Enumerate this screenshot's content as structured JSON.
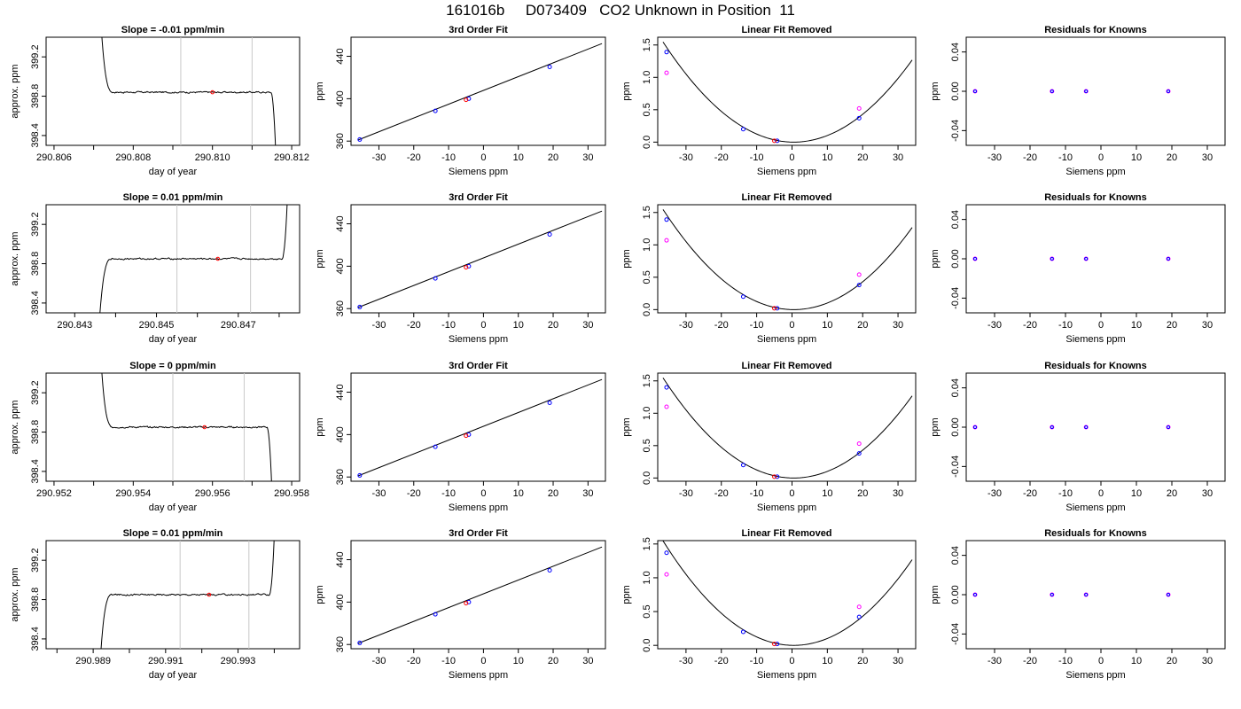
{
  "page_title": "161016b     D073409   CO2 Unknown in Position  11",
  "colors": {
    "axis": "#000000",
    "curve": "#000000",
    "vline": "#c8c8c8",
    "known_point": "#0000ff",
    "raw_point": "#ff00ff",
    "unknown_point": "#ff0000"
  },
  "chart_data": [
    {
      "type": "line",
      "panel": "trace",
      "row": 1,
      "title": "Slope =  -0.01  ppm/min",
      "xlabel": "day of year",
      "ylabel": "approx. ppm",
      "xlim": [
        290.8058,
        290.8122
      ],
      "ylim": [
        398.3,
        399.4
      ],
      "x_ticks": [
        290.806,
        290.807,
        290.808,
        290.809,
        290.81,
        290.811,
        290.812
      ],
      "x_tick_labels": [
        "290.806",
        "",
        "290.808",
        "",
        "290.810",
        "",
        "290.812"
      ],
      "y_ticks": [
        398.4,
        398.8,
        399.2
      ],
      "y_tick_labels": [
        "398.4",
        "398.8",
        "399.2"
      ],
      "vlines": [
        290.8092,
        290.811
      ],
      "trace": {
        "x_start": 290.8072,
        "x_end": 290.8116,
        "level": 398.84,
        "start_value": 399.45,
        "end_value": 398.2,
        "rise": false
      },
      "point": {
        "x": 290.81,
        "y": 398.84
      }
    },
    {
      "type": "scatter",
      "panel": "fit",
      "row": 1,
      "title": "3rd Order Fit",
      "xlabel": "Siemens ppm",
      "ylabel": "ppm",
      "xlim": [
        -38,
        35
      ],
      "ylim": [
        356,
        458
      ],
      "x_ticks": [
        -30,
        -20,
        -10,
        0,
        10,
        20,
        30
      ],
      "y_ticks": [
        360,
        400,
        440
      ],
      "x_tick_labels": [
        "-30",
        "-20",
        "-10",
        "0",
        "10",
        "20",
        "30"
      ],
      "y_tick_labels": [
        "360",
        "400",
        "440"
      ],
      "line": {
        "x": [
          -36,
          34
        ],
        "y": [
          361,
          452
        ]
      },
      "knowns": [
        [
          -35.5,
          361.5
        ],
        [
          -13.8,
          388.5
        ],
        [
          -4.2,
          400
        ],
        [
          19,
          430
        ]
      ],
      "unknown": [
        -5,
        399
      ]
    },
    {
      "type": "scatter",
      "panel": "linear",
      "row": 1,
      "title": "Linear Fit Removed",
      "xlabel": "Siemens ppm",
      "ylabel": "ppm",
      "xlim": [
        -38,
        35
      ],
      "ylim": [
        -0.05,
        1.62
      ],
      "x_ticks": [
        -30,
        -20,
        -10,
        0,
        10,
        20,
        30
      ],
      "y_ticks": [
        0,
        0.5,
        1,
        1.5
      ],
      "x_tick_labels": [
        "-30",
        "-20",
        "-10",
        "0",
        "10",
        "20",
        "30"
      ],
      "y_tick_labels": [
        "0.0",
        "0.5",
        "1.0",
        "1.5"
      ],
      "curve": {
        "vertex_x": 0.5,
        "coef": 0.00113,
        "x_range": [
          -36.5,
          34
        ]
      },
      "knowns": [
        [
          -35.5,
          1.39
        ],
        [
          -13.8,
          0.2
        ],
        [
          -4.2,
          0.02
        ],
        [
          19,
          0.37
        ]
      ],
      "raw": [
        [
          -35.5,
          1.07
        ],
        [
          19,
          0.52
        ]
      ],
      "unknown": [
        -5,
        0.02
      ]
    },
    {
      "type": "scatter",
      "panel": "resid",
      "row": 1,
      "title": "Residuals for Knowns",
      "xlabel": "Siemens ppm",
      "ylabel": "ppm",
      "xlim": [
        -38,
        35
      ],
      "ylim": [
        -0.055,
        0.055
      ],
      "x_ticks": [
        -30,
        -20,
        -10,
        0,
        10,
        20,
        30
      ],
      "y_ticks": [
        -0.04,
        0,
        0.04
      ],
      "x_tick_labels": [
        "-30",
        "-20",
        "-10",
        "0",
        "10",
        "20",
        "30"
      ],
      "y_tick_labels": [
        "-0.04",
        "0.00",
        "0.04"
      ],
      "knowns": [
        [
          -35.5,
          0
        ],
        [
          -13.8,
          0
        ],
        [
          -4.2,
          0
        ],
        [
          19,
          0
        ]
      ]
    },
    {
      "type": "line",
      "panel": "trace",
      "row": 2,
      "title": "Slope =  0.01  ppm/min",
      "xlabel": "day of year",
      "ylabel": "approx. ppm",
      "xlim": [
        290.8423,
        290.8485
      ],
      "ylim": [
        398.3,
        399.4
      ],
      "x_ticks": [
        290.843,
        290.844,
        290.845,
        290.846,
        290.847,
        290.848
      ],
      "x_tick_labels": [
        "290.843",
        "",
        "290.845",
        "",
        "290.847",
        ""
      ],
      "y_ticks": [
        398.4,
        398.8,
        399.2
      ],
      "y_tick_labels": [
        "398.4",
        "398.8",
        "399.2"
      ],
      "vlines": [
        290.8455,
        290.8473
      ],
      "trace": {
        "x_start": 290.8436,
        "x_end": 290.8482,
        "level": 398.85,
        "start_value": 398.2,
        "end_value": 399.45,
        "rise": true
      },
      "point": {
        "x": 290.8465,
        "y": 398.85
      }
    },
    {
      "type": "scatter",
      "panel": "fit",
      "row": 2,
      "title": "3rd Order Fit",
      "xlabel": "Siemens ppm",
      "ylabel": "ppm",
      "xlim": [
        -38,
        35
      ],
      "ylim": [
        356,
        458
      ],
      "x_ticks": [
        -30,
        -20,
        -10,
        0,
        10,
        20,
        30
      ],
      "y_ticks": [
        360,
        400,
        440
      ],
      "x_tick_labels": [
        "-30",
        "-20",
        "-10",
        "0",
        "10",
        "20",
        "30"
      ],
      "y_tick_labels": [
        "360",
        "400",
        "440"
      ],
      "line": {
        "x": [
          -36,
          34
        ],
        "y": [
          361,
          452
        ]
      },
      "knowns": [
        [
          -35.5,
          361.5
        ],
        [
          -13.8,
          388.5
        ],
        [
          -4.2,
          400
        ],
        [
          19,
          430
        ]
      ],
      "unknown": [
        -5,
        399
      ]
    },
    {
      "type": "scatter",
      "panel": "linear",
      "row": 2,
      "title": "Linear Fit Removed",
      "xlabel": "Siemens ppm",
      "ylabel": "ppm",
      "xlim": [
        -38,
        35
      ],
      "ylim": [
        -0.05,
        1.62
      ],
      "x_ticks": [
        -30,
        -20,
        -10,
        0,
        10,
        20,
        30
      ],
      "y_ticks": [
        0,
        0.5,
        1,
        1.5
      ],
      "x_tick_labels": [
        "-30",
        "-20",
        "-10",
        "0",
        "10",
        "20",
        "30"
      ],
      "y_tick_labels": [
        "0.0",
        "0.5",
        "1.0",
        "1.5"
      ],
      "curve": {
        "vertex_x": 0.5,
        "coef": 0.00113,
        "x_range": [
          -36.5,
          34
        ]
      },
      "knowns": [
        [
          -35.5,
          1.39
        ],
        [
          -13.8,
          0.2
        ],
        [
          -4.2,
          0.02
        ],
        [
          19,
          0.38
        ]
      ],
      "raw": [
        [
          -35.5,
          1.07
        ],
        [
          19,
          0.54
        ]
      ],
      "unknown": [
        -5,
        0.02
      ]
    },
    {
      "type": "scatter",
      "panel": "resid",
      "row": 2,
      "title": "Residuals for Knowns",
      "xlabel": "Siemens ppm",
      "ylabel": "ppm",
      "xlim": [
        -38,
        35
      ],
      "ylim": [
        -0.055,
        0.055
      ],
      "x_ticks": [
        -30,
        -20,
        -10,
        0,
        10,
        20,
        30
      ],
      "y_ticks": [
        -0.04,
        0,
        0.04
      ],
      "x_tick_labels": [
        "-30",
        "-20",
        "-10",
        "0",
        "10",
        "20",
        "30"
      ],
      "y_tick_labels": [
        "-0.04",
        "0.00",
        "0.04"
      ],
      "knowns": [
        [
          -35.5,
          0
        ],
        [
          -13.8,
          0
        ],
        [
          -4.2,
          0
        ],
        [
          19,
          0
        ]
      ]
    },
    {
      "type": "line",
      "panel": "trace",
      "row": 3,
      "title": "Slope =  0  ppm/min",
      "xlabel": "day of year",
      "ylabel": "approx. ppm",
      "xlim": [
        290.9518,
        290.9582
      ],
      "ylim": [
        398.3,
        399.4
      ],
      "x_ticks": [
        290.952,
        290.953,
        290.954,
        290.955,
        290.956,
        290.957,
        290.958
      ],
      "x_tick_labels": [
        "290.952",
        "",
        "290.954",
        "",
        "290.956",
        "",
        "290.958"
      ],
      "y_ticks": [
        398.4,
        398.8,
        399.2
      ],
      "y_tick_labels": [
        "398.4",
        "398.8",
        "399.2"
      ],
      "vlines": [
        290.955,
        290.9568
      ],
      "trace": {
        "x_start": 290.9532,
        "x_end": 290.9575,
        "level": 398.85,
        "start_value": 399.45,
        "end_value": 398.2,
        "rise": false
      },
      "point": {
        "x": 290.9558,
        "y": 398.85
      }
    },
    {
      "type": "scatter",
      "panel": "fit",
      "row": 3,
      "title": "3rd Order Fit",
      "xlabel": "Siemens ppm",
      "ylabel": "ppm",
      "xlim": [
        -38,
        35
      ],
      "ylim": [
        356,
        458
      ],
      "x_ticks": [
        -30,
        -20,
        -10,
        0,
        10,
        20,
        30
      ],
      "y_ticks": [
        360,
        400,
        440
      ],
      "x_tick_labels": [
        "-30",
        "-20",
        "-10",
        "0",
        "10",
        "20",
        "30"
      ],
      "y_tick_labels": [
        "360",
        "400",
        "440"
      ],
      "line": {
        "x": [
          -36,
          34
        ],
        "y": [
          361,
          452
        ]
      },
      "knowns": [
        [
          -35.5,
          361.5
        ],
        [
          -13.8,
          388.5
        ],
        [
          -4.2,
          400
        ],
        [
          19,
          430
        ]
      ],
      "unknown": [
        -5,
        399
      ]
    },
    {
      "type": "scatter",
      "panel": "linear",
      "row": 3,
      "title": "Linear Fit Removed",
      "xlabel": "Siemens ppm",
      "ylabel": "ppm",
      "xlim": [
        -38,
        35
      ],
      "ylim": [
        -0.05,
        1.62
      ],
      "x_ticks": [
        -30,
        -20,
        -10,
        0,
        10,
        20,
        30
      ],
      "y_ticks": [
        0,
        0.5,
        1,
        1.5
      ],
      "x_tick_labels": [
        "-30",
        "-20",
        "-10",
        "0",
        "10",
        "20",
        "30"
      ],
      "y_tick_labels": [
        "0.0",
        "0.5",
        "1.0",
        "1.5"
      ],
      "curve": {
        "vertex_x": 0.5,
        "coef": 0.00113,
        "x_range": [
          -36.5,
          34
        ]
      },
      "knowns": [
        [
          -35.5,
          1.4
        ],
        [
          -13.8,
          0.2
        ],
        [
          -4.2,
          0.02
        ],
        [
          19,
          0.38
        ]
      ],
      "raw": [
        [
          -35.5,
          1.1
        ],
        [
          19,
          0.53
        ]
      ],
      "unknown": [
        -5,
        0.02
      ]
    },
    {
      "type": "scatter",
      "panel": "resid",
      "row": 3,
      "title": "Residuals for Knowns",
      "xlabel": "Siemens ppm",
      "ylabel": "ppm",
      "xlim": [
        -38,
        35
      ],
      "ylim": [
        -0.055,
        0.055
      ],
      "x_ticks": [
        -30,
        -20,
        -10,
        0,
        10,
        20,
        30
      ],
      "y_ticks": [
        -0.04,
        0,
        0.04
      ],
      "x_tick_labels": [
        "-30",
        "-20",
        "-10",
        "0",
        "10",
        "20",
        "30"
      ],
      "y_tick_labels": [
        "-0.04",
        "0.00",
        "0.04"
      ],
      "knowns": [
        [
          -35.5,
          0
        ],
        [
          -13.8,
          0
        ],
        [
          -4.2,
          0
        ],
        [
          19,
          0
        ]
      ]
    },
    {
      "type": "line",
      "panel": "trace",
      "row": 4,
      "title": "Slope =  0.01  ppm/min",
      "xlabel": "day of year",
      "ylabel": "approx. ppm",
      "xlim": [
        290.9877,
        290.9947
      ],
      "ylim": [
        398.3,
        399.4
      ],
      "x_ticks": [
        290.988,
        290.989,
        290.99,
        290.991,
        290.992,
        290.993,
        290.994
      ],
      "x_tick_labels": [
        "",
        "290.989",
        "",
        "290.991",
        "",
        "290.993",
        ""
      ],
      "y_ticks": [
        398.4,
        398.8,
        399.2
      ],
      "y_tick_labels": [
        "398.4",
        "398.8",
        "399.2"
      ],
      "vlines": [
        290.9914,
        290.9933
      ],
      "trace": {
        "x_start": 290.9892,
        "x_end": 290.994,
        "level": 398.85,
        "start_value": 398.2,
        "end_value": 399.45,
        "rise": true
      },
      "point": {
        "x": 290.9922,
        "y": 398.85
      }
    },
    {
      "type": "scatter",
      "panel": "fit",
      "row": 4,
      "title": "3rd Order Fit",
      "xlabel": "Siemens ppm",
      "ylabel": "ppm",
      "xlim": [
        -38,
        35
      ],
      "ylim": [
        356,
        458
      ],
      "x_ticks": [
        -30,
        -20,
        -10,
        0,
        10,
        20,
        30
      ],
      "y_ticks": [
        360,
        400,
        440
      ],
      "x_tick_labels": [
        "-30",
        "-20",
        "-10",
        "0",
        "10",
        "20",
        "30"
      ],
      "y_tick_labels": [
        "360",
        "400",
        "440"
      ],
      "line": {
        "x": [
          -36,
          34
        ],
        "y": [
          361,
          452
        ]
      },
      "knowns": [
        [
          -35.5,
          361.5
        ],
        [
          -13.8,
          388.5
        ],
        [
          -4.2,
          400
        ],
        [
          19,
          430
        ]
      ],
      "unknown": [
        -5,
        399
      ]
    },
    {
      "type": "scatter",
      "panel": "linear",
      "row": 4,
      "title": "Linear Fit Removed",
      "xlabel": "Siemens ppm",
      "ylabel": "ppm",
      "xlim": [
        -38,
        35
      ],
      "ylim": [
        -0.05,
        1.55
      ],
      "x_ticks": [
        -30,
        -20,
        -10,
        0,
        10,
        20,
        30
      ],
      "y_ticks": [
        0,
        0.5,
        1,
        1.5
      ],
      "x_tick_labels": [
        "-30",
        "-20",
        "-10",
        "0",
        "10",
        "20",
        "30"
      ],
      "y_tick_labels": [
        "0.0",
        "0.5",
        "1.0",
        "1.5"
      ],
      "curve": {
        "vertex_x": 0.5,
        "coef": 0.00113,
        "x_range": [
          -36.5,
          34
        ]
      },
      "knowns": [
        [
          -35.5,
          1.37
        ],
        [
          -13.8,
          0.2
        ],
        [
          -4.2,
          0.02
        ],
        [
          19,
          0.42
        ]
      ],
      "raw": [
        [
          -35.5,
          1.05
        ],
        [
          19,
          0.57
        ]
      ],
      "unknown": [
        -5,
        0.02
      ]
    },
    {
      "type": "scatter",
      "panel": "resid",
      "row": 4,
      "title": "Residuals for Knowns",
      "xlabel": "Siemens ppm",
      "ylabel": "ppm",
      "xlim": [
        -38,
        35
      ],
      "ylim": [
        -0.055,
        0.055
      ],
      "x_ticks": [
        -30,
        -20,
        -10,
        0,
        10,
        20,
        30
      ],
      "y_ticks": [
        -0.04,
        0,
        0.04
      ],
      "x_tick_labels": [
        "-30",
        "-20",
        "-10",
        "0",
        "10",
        "20",
        "30"
      ],
      "y_tick_labels": [
        "-0.04",
        "0.00",
        "0.04"
      ],
      "knowns": [
        [
          -35.5,
          0
        ],
        [
          -13.8,
          0
        ],
        [
          -4.2,
          0
        ],
        [
          19,
          0
        ]
      ]
    }
  ]
}
